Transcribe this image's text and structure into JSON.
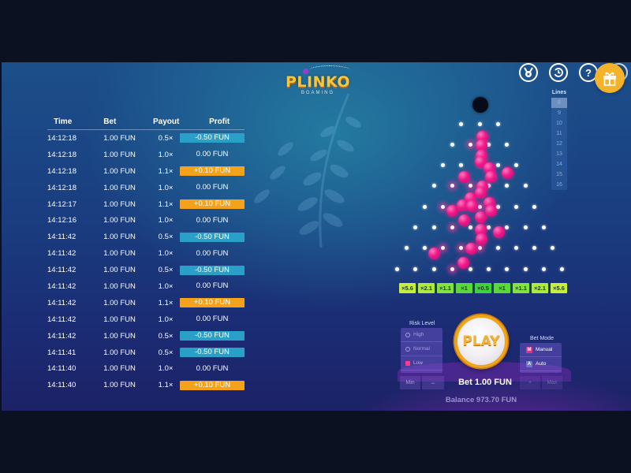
{
  "logo": {
    "title": "PLINKO",
    "subtitle": "BGAMING"
  },
  "top_icons": [
    {
      "name": "achievements-medal-icon",
      "glyph": "★"
    },
    {
      "name": "history-clock-icon",
      "glyph": "↺"
    },
    {
      "name": "help-question-icon",
      "glyph": "?"
    },
    {
      "name": "sound-icon",
      "glyph": "♪"
    }
  ],
  "gift": {
    "name": "gift-icon",
    "color": "#f4b32a"
  },
  "history": {
    "headers": {
      "time": "Time",
      "bet": "Bet",
      "payout": "Payout",
      "profit": "Profit"
    },
    "rows": [
      {
        "time": "14:12:18",
        "bet": "1.00 FUN",
        "payout": "0.5×",
        "profit": "-0.50 FUN",
        "type": "loss"
      },
      {
        "time": "14:12:18",
        "bet": "1.00 FUN",
        "payout": "1.0×",
        "profit": "0.00 FUN",
        "type": "even"
      },
      {
        "time": "14:12:18",
        "bet": "1.00 FUN",
        "payout": "1.1×",
        "profit": "+0.10 FUN",
        "type": "win"
      },
      {
        "time": "14:12:18",
        "bet": "1.00 FUN",
        "payout": "1.0×",
        "profit": "0.00 FUN",
        "type": "even"
      },
      {
        "time": "14:12:17",
        "bet": "1.00 FUN",
        "payout": "1.1×",
        "profit": "+0.10 FUN",
        "type": "win"
      },
      {
        "time": "14:12:16",
        "bet": "1.00 FUN",
        "payout": "1.0×",
        "profit": "0.00 FUN",
        "type": "even"
      },
      {
        "time": "14:11:42",
        "bet": "1.00 FUN",
        "payout": "0.5×",
        "profit": "-0.50 FUN",
        "type": "loss"
      },
      {
        "time": "14:11:42",
        "bet": "1.00 FUN",
        "payout": "1.0×",
        "profit": "0.00 FUN",
        "type": "even"
      },
      {
        "time": "14:11:42",
        "bet": "1.00 FUN",
        "payout": "0.5×",
        "profit": "-0.50 FUN",
        "type": "loss"
      },
      {
        "time": "14:11:42",
        "bet": "1.00 FUN",
        "payout": "1.0×",
        "profit": "0.00 FUN",
        "type": "even"
      },
      {
        "time": "14:11:42",
        "bet": "1.00 FUN",
        "payout": "1.1×",
        "profit": "+0.10 FUN",
        "type": "win"
      },
      {
        "time": "14:11:42",
        "bet": "1.00 FUN",
        "payout": "1.0×",
        "profit": "0.00 FUN",
        "type": "even"
      },
      {
        "time": "14:11:42",
        "bet": "1.00 FUN",
        "payout": "0.5×",
        "profit": "-0.50 FUN",
        "type": "loss"
      },
      {
        "time": "14:11:41",
        "bet": "1.00 FUN",
        "payout": "0.5×",
        "profit": "-0.50 FUN",
        "type": "loss"
      },
      {
        "time": "14:11:40",
        "bet": "1.00 FUN",
        "payout": "1.0×",
        "profit": "0.00 FUN",
        "type": "even"
      },
      {
        "time": "14:11:40",
        "bet": "1.00 FUN",
        "payout": "1.1×",
        "profit": "+0.10 FUN",
        "type": "win"
      }
    ]
  },
  "lines": {
    "label": "Lines",
    "options": [
      "8",
      "9",
      "10",
      "11",
      "12",
      "13",
      "14",
      "15",
      "16"
    ],
    "selected": "8"
  },
  "multipliers": [
    {
      "label": "×5.6",
      "color": "#c6ee3a"
    },
    {
      "label": "×2.1",
      "color": "#aeea3a"
    },
    {
      "label": "×1.1",
      "color": "#84e33a"
    },
    {
      "label": "×1",
      "color": "#5ad83a"
    },
    {
      "label": "×0.5",
      "color": "#3fd23a"
    },
    {
      "label": "×1",
      "color": "#5ad83a"
    },
    {
      "label": "×1.1",
      "color": "#84e33a"
    },
    {
      "label": "×2.1",
      "color": "#aeea3a"
    },
    {
      "label": "×5.6",
      "color": "#c6ee3a"
    }
  ],
  "risk": {
    "label": "Risk Level",
    "options": [
      {
        "label": "High",
        "active": false
      },
      {
        "label": "Normal",
        "active": false
      },
      {
        "label": "Low",
        "active": true
      }
    ]
  },
  "bet_mode": {
    "label": "Bet Mode",
    "options": [
      {
        "badge": "M",
        "label": "Manual",
        "badge_color": "#e0308a",
        "active": true
      },
      {
        "badge": "A",
        "label": "Auto",
        "badge_color": "#6a78c8",
        "active": false
      }
    ]
  },
  "play": {
    "label": "PLAY"
  },
  "bet_controls": {
    "min": "Min",
    "minus": "−",
    "plus": "+",
    "max": "Max",
    "bet": "Bet 1.00 FUN"
  },
  "balance": "Balance 973.70 FUN",
  "colors": {
    "loss": "#2aa0c8",
    "win": "#f4a21c",
    "ball": "#f0188a",
    "play_ring": "#f0a41a"
  }
}
